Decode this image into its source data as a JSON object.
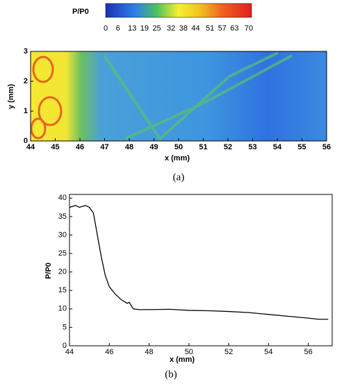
{
  "chart_data": [
    {
      "type": "heatmap",
      "colorbar_label": "P/P0",
      "colorbar_lim": [
        0,
        70
      ],
      "colorbar_ticks": [
        0,
        6,
        13,
        19,
        25,
        32,
        38,
        44,
        51,
        57,
        63,
        70
      ],
      "xlabel": "x (mm)",
      "ylabel": "y (mm)",
      "caption": "(a)",
      "xlim": [
        44,
        56
      ],
      "ylim": [
        0,
        3
      ],
      "xticks": [
        44,
        45,
        46,
        47,
        48,
        49,
        50,
        51,
        52,
        53,
        54,
        55,
        56
      ],
      "yticks": [
        0,
        1,
        2,
        3
      ]
    },
    {
      "type": "line",
      "xlabel": "x (mm)",
      "ylabel": "P/P0",
      "caption": "(b)",
      "xlim": [
        44,
        57.2
      ],
      "ylim": [
        0,
        41
      ],
      "xticks": [
        44,
        46,
        48,
        50,
        52,
        54,
        56
      ],
      "yticks": [
        0,
        5,
        10,
        15,
        20,
        25,
        30,
        35,
        40
      ],
      "x": [
        44,
        44.3,
        44.5,
        44.8,
        45.0,
        45.2,
        45.4,
        45.6,
        45.8,
        46.0,
        46.3,
        46.6,
        46.9,
        47.0,
        47.2,
        47.5,
        48,
        49,
        50,
        51,
        52,
        53,
        54,
        55,
        56,
        56.5,
        57
      ],
      "series": [
        {
          "color": "#000000",
          "values": [
            37.5,
            38,
            37.5,
            38,
            37.5,
            36,
            30,
            24,
            19,
            16,
            14,
            12.5,
            11.5,
            11.8,
            10,
            9.8,
            9.8,
            9.9,
            9.6,
            9.5,
            9.3,
            9.0,
            8.5,
            8.0,
            7.5,
            7.2,
            7.2
          ]
        }
      ]
    }
  ]
}
